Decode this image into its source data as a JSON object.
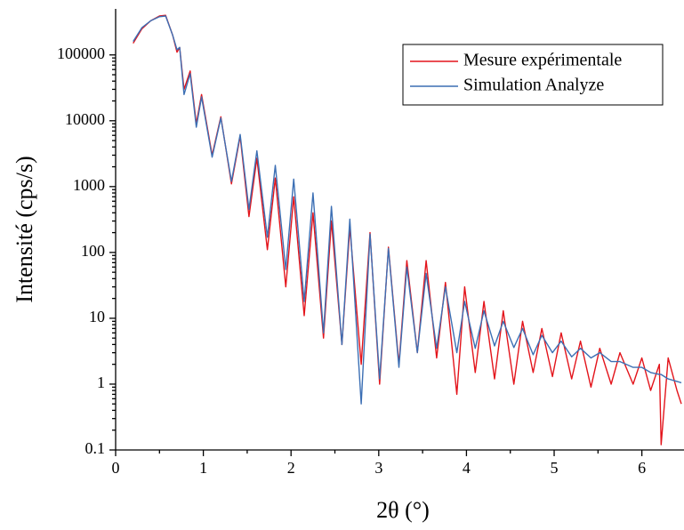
{
  "chart_data": {
    "type": "line",
    "x_label": "2θ (°)",
    "y_label": "Intensité (cps/s)",
    "x": [
      0.2,
      0.3,
      0.4,
      0.5,
      0.57,
      0.65,
      0.7,
      0.73,
      0.78,
      0.85,
      0.92,
      0.98,
      1.1,
      1.2,
      1.32,
      1.42,
      1.52,
      1.61,
      1.73,
      1.82,
      1.94,
      2.03,
      2.15,
      2.25,
      2.37,
      2.46,
      2.58,
      2.67,
      2.8,
      2.9,
      3.01,
      3.11,
      3.23,
      3.32,
      3.44,
      3.54,
      3.66,
      3.76,
      3.89,
      3.98,
      4.1,
      4.2,
      4.32,
      4.42,
      4.54,
      4.64,
      4.76,
      4.86,
      4.98,
      5.08,
      5.2,
      5.3,
      5.42,
      5.52,
      5.65,
      5.75,
      5.9,
      6.0,
      6.1,
      6.2,
      6.22,
      6.3,
      6.4,
      6.45
    ],
    "series": [
      {
        "name": "Mesure expérimentale",
        "color": "#e3141b",
        "values": [
          150000,
          250000,
          330000,
          390000,
          400000,
          200000,
          110000,
          130000,
          30000,
          57000,
          9000,
          25000,
          3000,
          11500,
          1100,
          5800,
          350,
          2700,
          110,
          1350,
          30,
          700,
          11,
          400,
          5,
          300,
          4,
          240,
          2,
          200,
          1,
          120,
          2,
          75,
          3,
          75,
          2.5,
          35,
          0.7,
          30,
          1.5,
          18,
          1.2,
          13,
          1,
          9,
          1.5,
          7,
          1.3,
          6,
          1.2,
          4.5,
          0.9,
          3.5,
          1,
          3,
          1,
          2.5,
          0.8,
          2,
          0.12,
          2.5,
          0.8,
          0.5
        ]
      },
      {
        "name": "Simulation Analyze",
        "color": "#3c6fb4",
        "values": [
          160000,
          260000,
          330000,
          380000,
          390000,
          200000,
          120000,
          130000,
          25000,
          52000,
          8000,
          23000,
          2800,
          11000,
          1200,
          6200,
          450,
          3500,
          170,
          2100,
          55,
          1300,
          18,
          800,
          6,
          500,
          4,
          320,
          0.5,
          190,
          1.2,
          115,
          1.8,
          60,
          3,
          48,
          3.5,
          30,
          3,
          18,
          3.5,
          13,
          3.8,
          9,
          3.6,
          7,
          2.8,
          5.5,
          3,
          4.5,
          2.6,
          3.5,
          2.5,
          3,
          2.2,
          2.2,
          1.8,
          1.8,
          1.5,
          1.4,
          1.4,
          1.2,
          1.1,
          1.05
        ]
      }
    ],
    "xlim": [
      0,
      6.45
    ],
    "xticks": [
      0,
      1,
      2,
      3,
      4,
      5,
      6
    ],
    "ylim": [
      0.1,
      500000
    ],
    "yticks": [
      0.1,
      1,
      10,
      100,
      1000,
      10000,
      100000
    ],
    "log_y": true,
    "legend": "top-right"
  }
}
